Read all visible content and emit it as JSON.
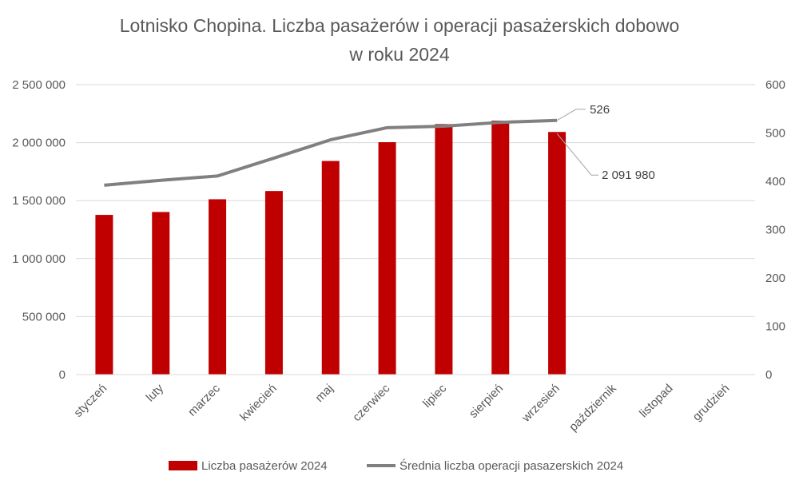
{
  "chart_data": {
    "type": "bar",
    "title_lines": [
      "Lotnisko Chopina. Liczba pasażerów i operacji pasażerskich dobowo",
      "w roku 2024"
    ],
    "categories": [
      "styczeń",
      "luty",
      "marzec",
      "kwiecień",
      "maj",
      "czerwiec",
      "lipiec",
      "sierpień",
      "wrzesień",
      "październik",
      "listopad",
      "grudzień"
    ],
    "series": [
      {
        "name": "Liczba pasażerów 2024",
        "type": "bar",
        "axis": "left",
        "color": "#C00000",
        "values": [
          1377000,
          1402000,
          1512000,
          1583000,
          1842000,
          2004000,
          2160000,
          2190000,
          2091980,
          null,
          null,
          null
        ]
      },
      {
        "name": "Średnia liczba operacji pasazerskich 2024",
        "type": "line",
        "axis": "right",
        "color": "#808080",
        "values": [
          392,
          402,
          411,
          448,
          486,
          511,
          514,
          522,
          526,
          null,
          null,
          null
        ]
      }
    ],
    "y_left": {
      "min": 0,
      "max": 2500000,
      "ticks": [
        0,
        500000,
        1000000,
        1500000,
        2000000,
        2500000
      ],
      "tick_labels": [
        "0",
        "500 000",
        "1 000 000",
        "1 500 000",
        "2 000 000",
        "2 500 000"
      ]
    },
    "y_right": {
      "min": 0,
      "max": 600,
      "ticks": [
        0,
        100,
        200,
        300,
        400,
        500,
        600
      ],
      "tick_labels": [
        "0",
        "100",
        "200",
        "300",
        "400",
        "500",
        "600"
      ]
    },
    "annotations": [
      {
        "series": 1,
        "index": 8,
        "text": "526"
      },
      {
        "series": 0,
        "index": 8,
        "text": "2 091 980"
      }
    ],
    "grid": true,
    "legend_position": "bottom"
  }
}
